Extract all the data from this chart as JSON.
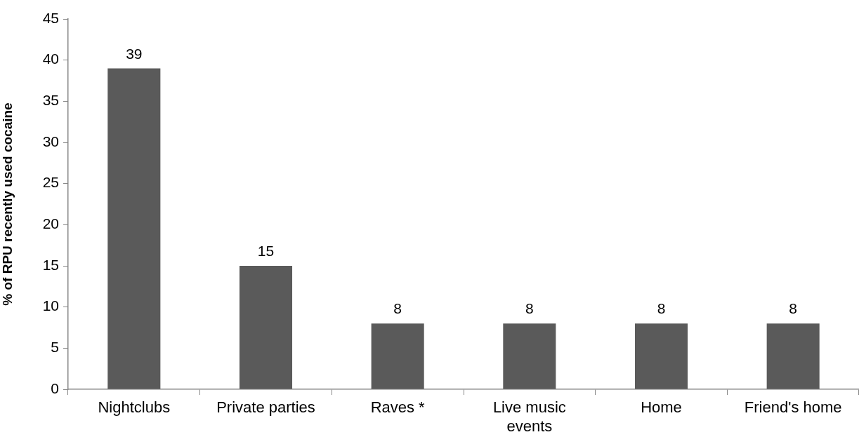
{
  "chart_data": {
    "type": "bar",
    "ylabel": "% of RPU recently used cocaine",
    "categories": [
      "Nightclubs",
      "Private parties",
      "Raves *",
      "Live music events",
      "Home",
      "Friend's home"
    ],
    "values": [
      39,
      15,
      8,
      8,
      8,
      8
    ],
    "color": "#5a5a5a",
    "ylim": [
      0,
      45
    ],
    "yticks": [
      0,
      5,
      10,
      15,
      20,
      25,
      30,
      35,
      40,
      45
    ],
    "data_labels": true,
    "legend": false
  }
}
